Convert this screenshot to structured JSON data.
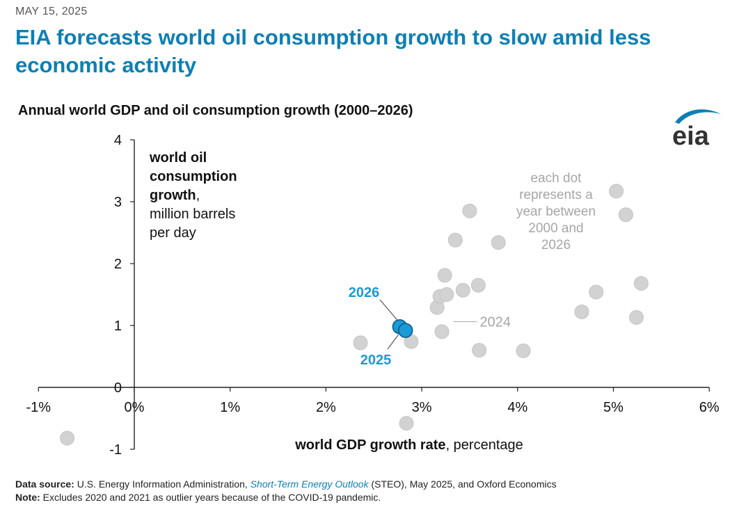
{
  "header": {
    "date": "MAY 15, 2025",
    "title": "EIA forecasts world oil consumption growth to slow amid less economic activity"
  },
  "logo_text": "eia",
  "colors": {
    "title_blue": "#0d7fb4",
    "highlight_fill": "#1a9ad6",
    "highlight_stroke": "#0b5a86",
    "grey_dot": "#d2d2d2",
    "grey_text": "#a6a6a6"
  },
  "chart_data": {
    "type": "scatter",
    "title": "Annual world GDP and oil consumption growth (2000–2026)",
    "ylabel_lines": [
      {
        "text": "world oil",
        "bold": true
      },
      {
        "text": "consumption",
        "bold": true
      },
      {
        "text": "growth",
        "bold": true,
        "suffix": ","
      },
      {
        "text": "million barrels",
        "bold": false
      },
      {
        "text": "per day",
        "bold": false
      }
    ],
    "xlabel_bold": "world GDP growth rate",
    "xlabel_rest": ", percentage",
    "xlim": [
      -1,
      6
    ],
    "ylim": [
      -1,
      4
    ],
    "x_ticks": [
      {
        "value": -1,
        "label": "-1%"
      },
      {
        "value": 0,
        "label": "0%"
      },
      {
        "value": 1,
        "label": "1%"
      },
      {
        "value": 2,
        "label": "2%"
      },
      {
        "value": 3,
        "label": "3%"
      },
      {
        "value": 4,
        "label": "4%"
      },
      {
        "value": 5,
        "label": "5%"
      },
      {
        "value": 6,
        "label": "6%"
      }
    ],
    "y_ticks": [
      {
        "value": -1,
        "label": "-1"
      },
      {
        "value": 0,
        "label": "0"
      },
      {
        "value": 1,
        "label": "1"
      },
      {
        "value": 2,
        "label": "2"
      },
      {
        "value": 3,
        "label": "3"
      },
      {
        "value": 4,
        "label": "4"
      }
    ],
    "grid": false,
    "points": [
      {
        "x": -0.7,
        "y": -0.82
      },
      {
        "x": 2.36,
        "y": 0.72
      },
      {
        "x": 2.84,
        "y": -0.58
      },
      {
        "x": 2.89,
        "y": 0.74
      },
      {
        "x": 3.16,
        "y": 1.29
      },
      {
        "x": 3.19,
        "y": 1.47
      },
      {
        "x": 3.26,
        "y": 1.5
      },
      {
        "x": 3.24,
        "y": 1.81
      },
      {
        "x": 3.21,
        "y": 0.9
      },
      {
        "x": 3.35,
        "y": 2.38
      },
      {
        "x": 3.43,
        "y": 1.57
      },
      {
        "x": 3.5,
        "y": 2.85
      },
      {
        "x": 3.59,
        "y": 1.65
      },
      {
        "x": 3.6,
        "y": 0.6
      },
      {
        "x": 3.8,
        "y": 2.34
      },
      {
        "x": 4.06,
        "y": 0.59
      },
      {
        "x": 4.67,
        "y": 1.22
      },
      {
        "x": 4.82,
        "y": 1.54
      },
      {
        "x": 5.03,
        "y": 3.17
      },
      {
        "x": 5.13,
        "y": 2.79
      },
      {
        "x": 5.24,
        "y": 1.13
      },
      {
        "x": 5.29,
        "y": 1.68
      }
    ],
    "highlight_points": [
      {
        "label": "2026",
        "x": 2.77,
        "y": 0.98
      },
      {
        "label": "2025",
        "x": 2.83,
        "y": 0.92
      }
    ],
    "annotations": {
      "year_2024": "2024",
      "note_lines": [
        "each dot",
        "represents a",
        "year between",
        "2000 and",
        "2026"
      ]
    }
  },
  "footer": {
    "source_label": "Data source:",
    "source_pre": " U.S. Energy Information Administration, ",
    "source_link": "Short-Term Energy Outlook",
    "source_post": " (STEO), May 2025, and Oxford Economics",
    "note_label": "Note:",
    "note_text": " Excludes 2020 and 2021 as outlier years because of the COVID-19 pandemic."
  }
}
